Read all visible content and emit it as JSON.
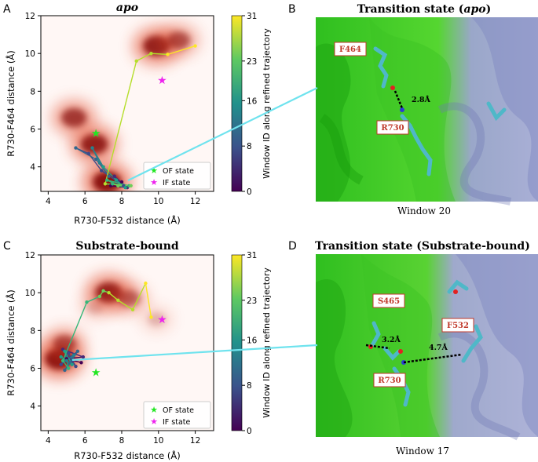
{
  "panels": [
    {
      "letter": "A",
      "title": "apo",
      "xlabel": "R730-F532 distance (Å)",
      "ylabel": "R730-F464 distance (Å)",
      "colorbar_label": "Window ID along refined trajectory",
      "legend": [
        "OF state",
        "IF state"
      ]
    },
    {
      "letter": "C",
      "title": "Substrate-bound",
      "xlabel": "R730-F532 distance (Å)",
      "ylabel": "R730-F464 distance (Å)",
      "colorbar_label": "Window ID along refined trajectory",
      "legend": [
        "OF state",
        "IF state"
      ]
    }
  ],
  "structures": [
    {
      "letter": "B",
      "title": "Transition state (",
      "title_em": "apo",
      "title_end": ")",
      "residues": [
        "F464",
        "R730"
      ],
      "distances": [
        "2.8Å"
      ],
      "window": "Window 20"
    },
    {
      "letter": "D",
      "title": "Transition state (Substrate-bound)",
      "residues": [
        "S465",
        "F532",
        "R730"
      ],
      "distances": [
        "3.2Å",
        "4.7Å"
      ],
      "window": "Window 17"
    }
  ],
  "chart_data": [
    {
      "type": "scatter",
      "title": "apo",
      "xlabel": "R730-F532 distance (Å)",
      "ylabel": "R730-F464 distance (Å)",
      "xlim": [
        3.6,
        13
      ],
      "ylim": [
        2.7,
        12
      ],
      "xticks": [
        4,
        6,
        8,
        10,
        12
      ],
      "yticks": [
        4,
        6,
        8,
        10,
        12
      ],
      "colorbar": {
        "label": "Window ID along refined trajectory",
        "ticks": [
          0,
          8,
          16,
          23,
          31
        ]
      },
      "density_blobs": [
        {
          "x": 7.2,
          "y": 3.2,
          "intensity": 1.0
        },
        {
          "x": 6.5,
          "y": 5.2,
          "intensity": 0.9
        },
        {
          "x": 5.4,
          "y": 6.6,
          "intensity": 0.75
        },
        {
          "x": 9.9,
          "y": 10.4,
          "intensity": 0.9
        },
        {
          "x": 11.1,
          "y": 10.7,
          "intensity": 0.6
        }
      ],
      "trajectory": [
        [
          8.0,
          3.2
        ],
        [
          7.4,
          3.0
        ],
        [
          8.3,
          2.9
        ],
        [
          7.6,
          3.5
        ],
        [
          8.1,
          3.0
        ],
        [
          6.9,
          3.8
        ],
        [
          6.2,
          4.7
        ],
        [
          5.5,
          5.0
        ],
        [
          6.6,
          4.4
        ],
        [
          7.3,
          3.5
        ],
        [
          6.8,
          4.2
        ],
        [
          6.4,
          5.0
        ],
        [
          7.0,
          4.0
        ],
        [
          7.7,
          3.3
        ],
        [
          8.2,
          2.9
        ],
        [
          7.5,
          3.1
        ],
        [
          8.4,
          3.0
        ],
        [
          7.2,
          3.3
        ],
        [
          7.8,
          3.0
        ],
        [
          8.5,
          3.0
        ],
        [
          7.1,
          3.1
        ],
        [
          8.8,
          9.6
        ],
        [
          9.6,
          10.0
        ],
        [
          10.5,
          9.95
        ],
        [
          12.0,
          10.4
        ]
      ],
      "states": [
        {
          "name": "OF state",
          "x": 6.6,
          "y": 5.8,
          "color": "#22e622"
        },
        {
          "name": "IF state",
          "x": 10.2,
          "y": 8.6,
          "color": "#ee22ee"
        }
      ]
    },
    {
      "type": "scatter",
      "title": "Substrate-bound",
      "xlabel": "R730-F532 distance (Å)",
      "ylabel": "R730-F464 distance (Å)",
      "xlim": [
        3.6,
        13
      ],
      "ylim": [
        2.7,
        12
      ],
      "xticks": [
        4,
        6,
        8,
        10,
        12
      ],
      "yticks": [
        4,
        6,
        8,
        10,
        12
      ],
      "colorbar": {
        "label": "Window ID along refined trajectory",
        "ticks": [
          0,
          8,
          16,
          23,
          31
        ]
      },
      "density_blobs": [
        {
          "x": 4.6,
          "y": 6.5,
          "intensity": 1.0
        },
        {
          "x": 4.9,
          "y": 7.3,
          "intensity": 0.6
        },
        {
          "x": 7.3,
          "y": 10.0,
          "intensity": 0.9
        },
        {
          "x": 8.4,
          "y": 9.7,
          "intensity": 0.5
        },
        {
          "x": 9.9,
          "y": 8.6,
          "intensity": 0.2
        },
        {
          "x": 6.5,
          "y": 9.2,
          "intensity": 0.15
        }
      ],
      "trajectory": [
        [
          5.8,
          6.3
        ],
        [
          5.0,
          6.5
        ],
        [
          5.9,
          6.6
        ],
        [
          4.8,
          7.0
        ],
        [
          5.5,
          6.1
        ],
        [
          5.1,
          6.8
        ],
        [
          4.7,
          6.2
        ],
        [
          5.6,
          6.9
        ],
        [
          5.2,
          6.3
        ],
        [
          4.9,
          5.9
        ],
        [
          5.4,
          6.7
        ],
        [
          5.0,
          6.4
        ],
        [
          4.7,
          6.6
        ],
        [
          5.3,
          6.2
        ],
        [
          4.9,
          6.9
        ],
        [
          5.1,
          6.0
        ],
        [
          4.8,
          6.4
        ],
        [
          6.1,
          9.5
        ],
        [
          6.8,
          9.8
        ],
        [
          7.0,
          10.1
        ],
        [
          7.3,
          10.0
        ],
        [
          7.8,
          9.6
        ],
        [
          8.6,
          9.1
        ],
        [
          9.3,
          10.5
        ],
        [
          9.6,
          8.7
        ]
      ],
      "states": [
        {
          "name": "OF state",
          "x": 6.6,
          "y": 5.8,
          "color": "#22e622"
        },
        {
          "name": "IF state",
          "x": 10.2,
          "y": 8.6,
          "color": "#ee22ee"
        }
      ]
    }
  ]
}
